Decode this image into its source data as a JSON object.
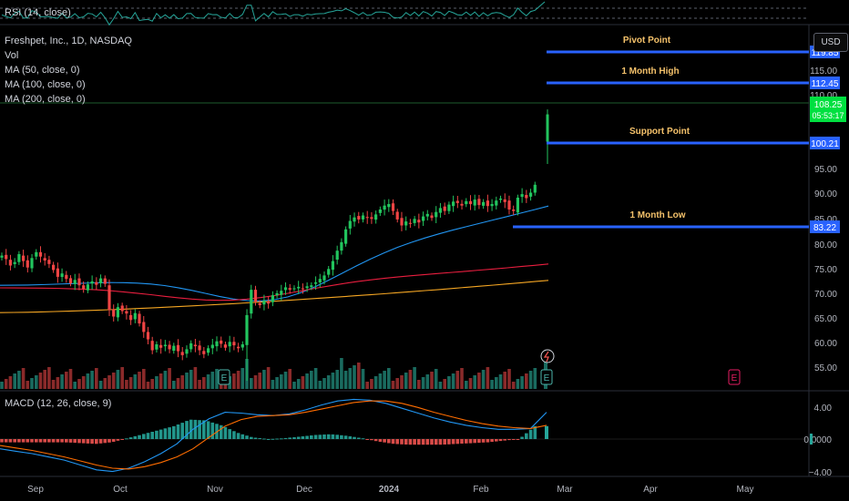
{
  "header": {
    "symbol_line": "Freshpet, Inc., 1D, NASDAQ",
    "vol_label": "Vol",
    "ma50_label": "MA (50, close, 0)",
    "ma100_label": "MA (100, close, 0)",
    "ma200_label": "MA (200, close, 0)",
    "rsi_label": "RSI (14, close)",
    "macd_label": "MACD (12, 26, close, 9)",
    "currency_button": "USD"
  },
  "colors": {
    "background": "#000000",
    "up": "#26a69a",
    "down": "#ef5350",
    "candle_up": "#22c55e",
    "candle_down": "#ef4444",
    "ma50": "#2196f3",
    "ma100": "#e91e3f",
    "ma200": "#f5a623",
    "level_line": "#2962ff",
    "level_text": "#f5c26b",
    "rsi_line": "#26a69a",
    "macd_line": "#2196f3",
    "signal_line": "#ff6d00",
    "last_price_box": "#00e040"
  },
  "chart_data": [
    {
      "type": "candlestick",
      "title": "Freshpet, Inc., 1D, NASDAQ",
      "x_labels": [
        "Sep",
        "Oct",
        "Nov",
        "Dec",
        "2024",
        "Feb",
        "Mar",
        "Apr",
        "May"
      ],
      "y_ticks": [
        "55.00",
        "60.00",
        "65.00",
        "70.00",
        "75.00",
        "80.00",
        "85.00",
        "90.00",
        "95.00",
        "110.00",
        "115.00"
      ],
      "ylim": [
        52,
        122
      ],
      "grid": false,
      "price_closes": [
        77.5,
        76.8,
        75.5,
        76.2,
        77.8,
        76.4,
        75.1,
        77.0,
        78.2,
        77.3,
        76.5,
        75.8,
        74.6,
        73.2,
        73.9,
        72.8,
        71.9,
        72.6,
        71.5,
        70.8,
        71.7,
        72.3,
        71.6,
        72.9,
        71.8,
        66.5,
        65.2,
        67.1,
        66.3,
        65.8,
        64.5,
        65.9,
        63.8,
        62.1,
        60.6,
        58.4,
        59.6,
        58.9,
        59.5,
        58.6,
        59.3,
        58.2,
        57.4,
        58.6,
        59.8,
        59.2,
        58.4,
        57.6,
        58.8,
        59.5,
        60.2,
        59.7,
        58.9,
        60.1,
        59.4,
        58.8,
        59.6,
        65.5,
        70.6,
        68.2,
        67.5,
        68.4,
        67.8,
        69.5,
        69.9,
        70.4,
        71.1,
        70.6,
        70.9,
        71.2,
        70.8,
        71.3,
        71.5,
        72.1,
        72.8,
        73.5,
        74.8,
        76.4,
        78.5,
        80.2,
        82.8,
        84.5,
        85.2,
        84.8,
        85.6,
        85.1,
        84.9,
        85.8,
        86.8,
        87.6,
        87.9,
        86.5,
        84.8,
        83.6,
        84.4,
        83.9,
        84.9,
        84.2,
        85.4,
        85.9,
        85.1,
        86.3,
        87.1,
        86.5,
        87.8,
        88.4,
        88.1,
        87.6,
        88.5,
        87.9,
        88.8,
        87.7,
        88.3,
        87.5,
        87.9,
        88.6,
        89.0,
        88.3,
        86.8,
        86.5,
        89.2,
        89.9,
        89.1,
        90.2,
        91.8
      ],
      "last_candle": {
        "open": 100.5,
        "high": 107.0,
        "low": 96.0,
        "close": 106.0
      },
      "current_price": "108.25",
      "countdown": "05:53:17",
      "moving_averages": [
        {
          "name": "MA (50, close, 0)",
          "start": 71.5,
          "end": 87.5,
          "min": 66.0
        },
        {
          "name": "MA (100, close, 0)",
          "start": 71.0,
          "end": 75.8,
          "min": 67.8
        },
        {
          "name": "MA (200, close, 0)",
          "start": 66.0,
          "end": 72.5,
          "min": 66.0
        }
      ],
      "levels": [
        {
          "label": "Pivot Point",
          "value": "119.85"
        },
        {
          "label": "1 Month High",
          "value": "112.45"
        },
        {
          "label": "Support Point",
          "value": "100.21"
        },
        {
          "label": "1 Month Low",
          "value": "83.22"
        }
      ],
      "events": [
        "E",
        "E",
        "E"
      ]
    },
    {
      "type": "line",
      "name": "RSI (14, close)",
      "ylim": [
        0,
        100
      ]
    },
    {
      "type": "histogram",
      "name": "MACD (12, 26, close, 9)",
      "y_ticks": [
        "4.00",
        "0.0000",
        "−4.00"
      ],
      "ylim": [
        -4.5,
        4.5
      ],
      "macd": [
        -1.2,
        -1.5,
        -1.8,
        -2.2,
        -2.6,
        -3.2,
        -3.8,
        -4.0,
        -3.6,
        -2.8,
        -1.8,
        -0.6,
        1.2,
        2.5,
        3.3,
        3.2,
        3.0,
        2.9,
        3.1,
        3.6,
        4.2,
        4.7,
        4.9,
        4.8,
        4.4,
        3.8,
        3.2,
        2.6,
        2.1,
        1.7,
        1.4,
        1.2,
        1.2,
        1.3,
        3.3
      ],
      "signal": [
        -0.8,
        -1.1,
        -1.4,
        -1.8,
        -2.2,
        -2.7,
        -3.2,
        -3.6,
        -3.7,
        -3.4,
        -2.9,
        -2.2,
        -1.2,
        0.2,
        1.6,
        2.4,
        2.8,
        2.9,
        3.0,
        3.3,
        3.7,
        4.1,
        4.5,
        4.7,
        4.7,
        4.4,
        3.9,
        3.3,
        2.8,
        2.3,
        1.9,
        1.6,
        1.4,
        1.3,
        1.7
      ]
    }
  ]
}
